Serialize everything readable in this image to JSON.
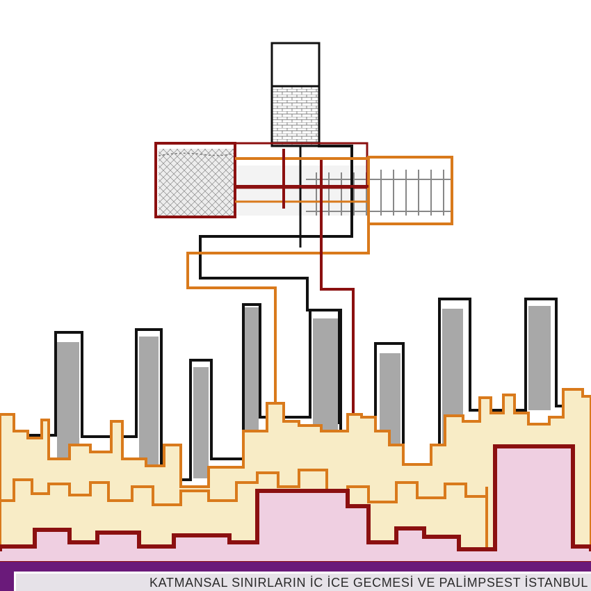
{
  "caption": "KATMANSAL SINIRLARIN İC İCE GECMESİ VE PALİMPSEST İSTANBUL",
  "colors": {
    "black": "#111111",
    "maroon": "#8b1010",
    "orange": "#d97a1c",
    "grey": "#a8a8a8",
    "cream": "#f8ecc6",
    "pink": "#efcfe1",
    "purple": "#6a1a7a"
  }
}
